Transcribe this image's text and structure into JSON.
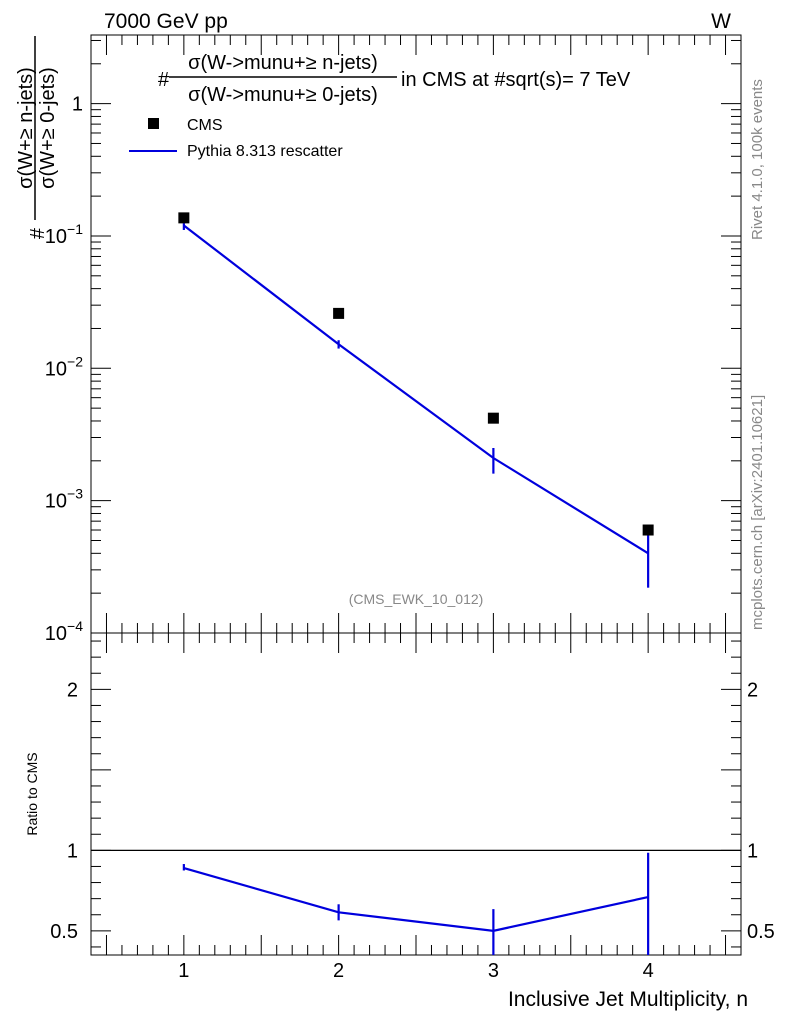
{
  "header": {
    "energy_label": "7000 GeV pp",
    "process_label": "W"
  },
  "side_labels": {
    "rivet": "Rivet 4.1.0,  100k events",
    "mcplots": "mcplots.cern.ch [arXiv:2401.10621]"
  },
  "title": {
    "prefix": "#",
    "numerator": "σ(W->munu+≥ n-jets)",
    "denominator": "σ(W->munu+≥ 0-jets)",
    "suffix": "in CMS at #sqrt(s)= 7 TeV"
  },
  "watermark": "(CMS_EWK_10_012)",
  "legend": {
    "data_label": "CMS",
    "mc_label": "Pythia 8.313 rescatter"
  },
  "colors": {
    "data": "#000000",
    "mc": "#0000dd"
  },
  "chart_data": [
    {
      "type": "scatter",
      "panel": "main",
      "scale": "log",
      "ylabel_prefix": "#",
      "ylabel_numerator": "σ(W+≥ n-jets)",
      "ylabel_denominator": "σ(W+≥ 0-jets)",
      "xlim": [
        0.4,
        4.6
      ],
      "ylim": [
        0.0001,
        3.3
      ],
      "y_ticks": [
        {
          "value": 1,
          "mantissa": "1",
          "exp": ""
        },
        {
          "value": 0.1,
          "mantissa": "10",
          "exp": "−1"
        },
        {
          "value": 0.01,
          "mantissa": "10",
          "exp": "−2"
        },
        {
          "value": 0.001,
          "mantissa": "10",
          "exp": "−3"
        },
        {
          "value": 0.0001,
          "mantissa": "10",
          "exp": "−4"
        }
      ],
      "series": [
        {
          "name": "CMS",
          "style": "markers",
          "x": [
            1,
            2,
            3,
            4
          ],
          "y": [
            0.137,
            0.026,
            0.0042,
            0.0006
          ]
        },
        {
          "name": "Pythia 8.313 rescatter",
          "style": "line",
          "x": [
            1,
            2,
            3,
            4
          ],
          "y": [
            0.12,
            0.0152,
            0.0021,
            0.0004
          ],
          "err_low": [
            0.111,
            0.0141,
            0.0016,
            0.00022
          ],
          "err_high": [
            0.125,
            0.0163,
            0.0025,
            0.00055
          ]
        }
      ]
    },
    {
      "type": "line",
      "panel": "ratio",
      "ylabel": "Ratio to CMS",
      "xlabel": "Inclusive Jet Multiplicity, n",
      "xlim": [
        0.4,
        4.6
      ],
      "ylim": [
        0.35,
        2.35
      ],
      "x_ticks": [
        "1",
        "2",
        "3",
        "4"
      ],
      "y_ticks": [
        "0.5",
        "1",
        "2"
      ],
      "reference": 1,
      "series": [
        {
          "name": "Pythia 8.313 rescatter",
          "x": [
            1,
            2,
            3,
            4
          ],
          "y": [
            0.89,
            0.615,
            0.5,
            0.71
          ],
          "err_low": [
            0.875,
            0.565,
            0.35,
            0.35
          ],
          "err_high": [
            0.915,
            0.665,
            0.635,
            0.985
          ]
        }
      ]
    }
  ]
}
